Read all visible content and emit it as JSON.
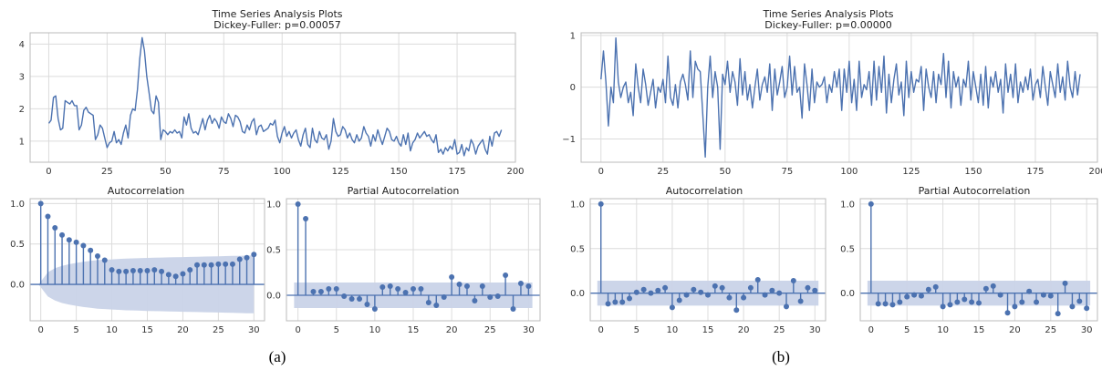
{
  "panels": [
    {
      "caption": "(a)",
      "title_line1": "Time Series Analysis Plots",
      "title_line2": "Dickey-Fuller: p=0.00057",
      "acf_title": "Autocorrelation",
      "pacf_title": "Partial Autocorrelation"
    },
    {
      "caption": "(b)",
      "title_line1": "Time Series Analysis Plots",
      "title_line2": "Dickey-Fuller: p=0.00000",
      "acf_title": "Autocorrelation",
      "pacf_title": "Partial Autocorrelation"
    }
  ],
  "colors": {
    "line": "#4c72b0",
    "band": "#c9d3e8",
    "grid": "#dcdcdc",
    "axis": "#bbbbbb"
  },
  "chart_data": [
    {
      "type": "line",
      "id": "ts-a",
      "x_start": 0,
      "xlim": [
        -8,
        200
      ],
      "ylim": [
        0.35,
        4.35
      ],
      "xticks": [
        0,
        25,
        50,
        75,
        100,
        125,
        150,
        175,
        200
      ],
      "yticks": [
        1,
        2,
        3,
        4
      ],
      "grid": true,
      "values": [
        1.55,
        1.65,
        2.35,
        2.4,
        1.7,
        1.35,
        1.4,
        2.25,
        2.2,
        2.15,
        2.25,
        2.1,
        2.1,
        1.35,
        1.5,
        1.95,
        2.05,
        1.9,
        1.85,
        1.8,
        1.05,
        1.2,
        1.5,
        1.4,
        1.1,
        0.8,
        0.95,
        1.0,
        1.3,
        0.95,
        1.05,
        0.9,
        1.25,
        1.5,
        1.1,
        1.8,
        2.0,
        1.95,
        2.6,
        3.55,
        4.2,
        3.8,
        3.0,
        2.5,
        1.95,
        1.85,
        2.4,
        2.2,
        1.05,
        1.35,
        1.3,
        1.2,
        1.3,
        1.25,
        1.35,
        1.25,
        1.3,
        1.1,
        1.75,
        1.5,
        1.85,
        1.4,
        1.25,
        1.3,
        1.2,
        1.45,
        1.7,
        1.35,
        1.65,
        1.8,
        1.55,
        1.7,
        1.6,
        1.4,
        1.75,
        1.6,
        1.55,
        1.85,
        1.7,
        1.45,
        1.8,
        1.75,
        1.6,
        1.3,
        1.25,
        1.5,
        1.35,
        1.6,
        1.7,
        1.2,
        1.45,
        1.5,
        1.3,
        1.35,
        1.4,
        1.55,
        1.5,
        1.65,
        1.15,
        0.95,
        1.25,
        1.45,
        1.15,
        1.3,
        1.1,
        1.25,
        1.35,
        1.05,
        0.85,
        1.2,
        1.4,
        0.9,
        0.8,
        1.4,
        1.05,
        0.95,
        1.3,
        1.1,
        1.05,
        1.2,
        0.75,
        1.0,
        1.7,
        1.3,
        1.15,
        1.2,
        1.45,
        1.35,
        1.1,
        1.25,
        1.05,
        0.95,
        1.2,
        1.0,
        1.1,
        1.45,
        1.25,
        1.15,
        0.85,
        1.2,
        1.0,
        1.35,
        1.1,
        0.9,
        1.15,
        1.4,
        1.3,
        1.05,
        1.0,
        1.15,
        0.95,
        0.85,
        1.2,
        0.9,
        1.25,
        0.7,
        0.95,
        1.05,
        1.25,
        1.1,
        1.2,
        1.3,
        1.15,
        1.2,
        1.05,
        0.95,
        1.2,
        0.65,
        0.75,
        0.6,
        0.8,
        0.7,
        0.85,
        0.75,
        1.05,
        0.6,
        0.65,
        0.9,
        0.55,
        0.8,
        0.7,
        1.05,
        0.9,
        0.6,
        0.85,
        0.95,
        1.05,
        0.75,
        0.6,
        1.15,
        0.85,
        1.25,
        1.3,
        1.15,
        1.35
      ]
    },
    {
      "type": "bar",
      "id": "acf-a",
      "xlim": [
        -1.5,
        31.5
      ],
      "ylim": [
        -0.45,
        1.06
      ],
      "xticks": [
        0,
        5,
        10,
        15,
        20,
        25,
        30
      ],
      "yticks": [
        0.0,
        0.5,
        1.0
      ],
      "band_upper": [
        0.0,
        0.15,
        0.2,
        0.23,
        0.25,
        0.265,
        0.28,
        0.29,
        0.3,
        0.305,
        0.31,
        0.315,
        0.32,
        0.322,
        0.325,
        0.328,
        0.33,
        0.332,
        0.334,
        0.336,
        0.338,
        0.34,
        0.342,
        0.344,
        0.346,
        0.348,
        0.35,
        0.352,
        0.354,
        0.356,
        0.358
      ],
      "values": [
        1.0,
        0.84,
        0.7,
        0.61,
        0.55,
        0.52,
        0.48,
        0.42,
        0.35,
        0.3,
        0.18,
        0.16,
        0.16,
        0.17,
        0.17,
        0.17,
        0.18,
        0.16,
        0.12,
        0.1,
        0.13,
        0.18,
        0.24,
        0.24,
        0.24,
        0.25,
        0.25,
        0.25,
        0.31,
        0.33,
        0.37
      ]
    },
    {
      "type": "bar",
      "id": "pacf-a",
      "xlim": [
        -1.5,
        31.5
      ],
      "ylim": [
        -0.28,
        1.06
      ],
      "xticks": [
        0,
        5,
        10,
        15,
        20,
        25,
        30
      ],
      "yticks": [
        0.0,
        0.5,
        1.0
      ],
      "band_upper": [
        0.14
      ],
      "values": [
        1.0,
        0.84,
        0.04,
        0.04,
        0.07,
        0.07,
        -0.01,
        -0.04,
        -0.04,
        -0.1,
        -0.15,
        0.09,
        0.1,
        0.07,
        0.03,
        0.07,
        0.07,
        -0.08,
        -0.11,
        -0.02,
        0.2,
        0.12,
        0.1,
        -0.06,
        0.1,
        -0.02,
        -0.01,
        0.22,
        -0.15,
        0.13,
        0.1
      ]
    },
    {
      "type": "line",
      "id": "ts-b",
      "x_start": 0,
      "xlim": [
        -8,
        200
      ],
      "ylim": [
        -1.45,
        1.05
      ],
      "xticks": [
        0,
        25,
        50,
        75,
        100,
        125,
        150,
        175,
        200
      ],
      "yticks": [
        -1,
        0,
        1
      ],
      "grid": true,
      "values": [
        0.15,
        0.7,
        0.1,
        -0.75,
        0.0,
        -0.3,
        0.95,
        0.1,
        -0.2,
        0.0,
        0.1,
        -0.3,
        -0.1,
        -0.55,
        0.45,
        0.0,
        -0.3,
        0.35,
        0.05,
        -0.35,
        -0.1,
        0.15,
        -0.4,
        0.0,
        -0.1,
        0.15,
        -0.3,
        0.6,
        -0.2,
        -0.35,
        0.05,
        -0.4,
        0.1,
        0.25,
        0.05,
        -0.25,
        0.7,
        -0.2,
        0.5,
        0.35,
        0.3,
        -0.5,
        -1.35,
        0.0,
        0.6,
        -0.2,
        0.3,
        0.0,
        -1.2,
        0.25,
        0.05,
        0.5,
        -0.1,
        0.3,
        0.1,
        -0.35,
        0.55,
        -0.15,
        0.3,
        -0.25,
        0.05,
        -0.4,
        0.0,
        0.35,
        -0.25,
        0.05,
        0.2,
        -0.1,
        0.45,
        -0.45,
        0.35,
        -0.15,
        0.1,
        0.4,
        -0.2,
        0.0,
        0.6,
        -0.15,
        0.4,
        -0.1,
        0.0,
        -0.6,
        0.45,
        0.05,
        -0.45,
        0.35,
        -0.3,
        0.1,
        0.0,
        0.05,
        0.2,
        -0.3,
        0.05,
        -0.1,
        0.3,
        0.0,
        0.35,
        -0.45,
        0.35,
        -0.1,
        0.5,
        -0.3,
        0.15,
        -0.45,
        0.5,
        -0.2,
        0.05,
        -0.05,
        0.3,
        -0.35,
        0.5,
        -0.25,
        0.4,
        -0.1,
        0.6,
        -0.5,
        0.25,
        -0.3,
        0.15,
        0.45,
        -0.15,
        0.1,
        -0.55,
        0.5,
        -0.2,
        0.3,
        -0.1,
        0.15,
        0.1,
        0.4,
        -0.45,
        0.35,
        0.0,
        -0.2,
        0.3,
        -0.3,
        0.25,
        0.05,
        0.65,
        -0.2,
        0.5,
        -0.4,
        0.3,
        0.0,
        0.2,
        -0.35,
        0.15,
        0.0,
        0.5,
        -0.25,
        0.3,
        0.0,
        -0.3,
        0.25,
        -0.35,
        0.4,
        -0.4,
        0.2,
        0.0,
        0.3,
        -0.1,
        0.15,
        -0.5,
        0.45,
        -0.1,
        0.25,
        -0.2,
        0.45,
        -0.3,
        0.1,
        -0.1,
        0.2,
        -0.05,
        0.35,
        -0.25,
        0.05,
        0.15,
        -0.2,
        0.4,
        0.0,
        -0.35,
        0.3,
        0.05,
        -0.2,
        0.45,
        -0.1,
        0.2,
        -0.25,
        0.5,
        0.0,
        -0.2,
        0.3,
        -0.15,
        0.25
      ]
    },
    {
      "type": "bar",
      "id": "acf-b",
      "xlim": [
        -1.5,
        31.5
      ],
      "ylim": [
        -0.31,
        1.06
      ],
      "xticks": [
        0,
        5,
        10,
        15,
        20,
        25,
        30
      ],
      "yticks": [
        0.0,
        0.5,
        1.0
      ],
      "band_upper": [
        0.14
      ],
      "values": [
        1.0,
        -0.12,
        -0.1,
        -0.1,
        -0.06,
        0.01,
        0.04,
        0.0,
        0.03,
        0.06,
        -0.16,
        -0.08,
        -0.02,
        0.04,
        0.01,
        -0.02,
        0.08,
        0.06,
        -0.05,
        -0.19,
        -0.05,
        0.06,
        0.15,
        -0.02,
        0.03,
        0.0,
        -0.15,
        0.14,
        -0.09,
        0.06,
        0.03
      ]
    },
    {
      "type": "bar",
      "id": "pacf-b",
      "xlim": [
        -1.5,
        31.5
      ],
      "ylim": [
        -0.31,
        1.06
      ],
      "xticks": [
        0,
        5,
        10,
        15,
        20,
        25,
        30
      ],
      "yticks": [
        0.0,
        0.5,
        1.0
      ],
      "band_upper": [
        0.14
      ],
      "values": [
        1.0,
        -0.12,
        -0.12,
        -0.13,
        -0.1,
        -0.04,
        -0.02,
        -0.03,
        0.04,
        0.07,
        -0.15,
        -0.13,
        -0.1,
        -0.07,
        -0.1,
        -0.11,
        0.05,
        0.08,
        -0.02,
        -0.22,
        -0.15,
        -0.1,
        0.02,
        -0.1,
        -0.02,
        -0.03,
        -0.23,
        0.11,
        -0.15,
        -0.09,
        -0.17
      ]
    }
  ]
}
